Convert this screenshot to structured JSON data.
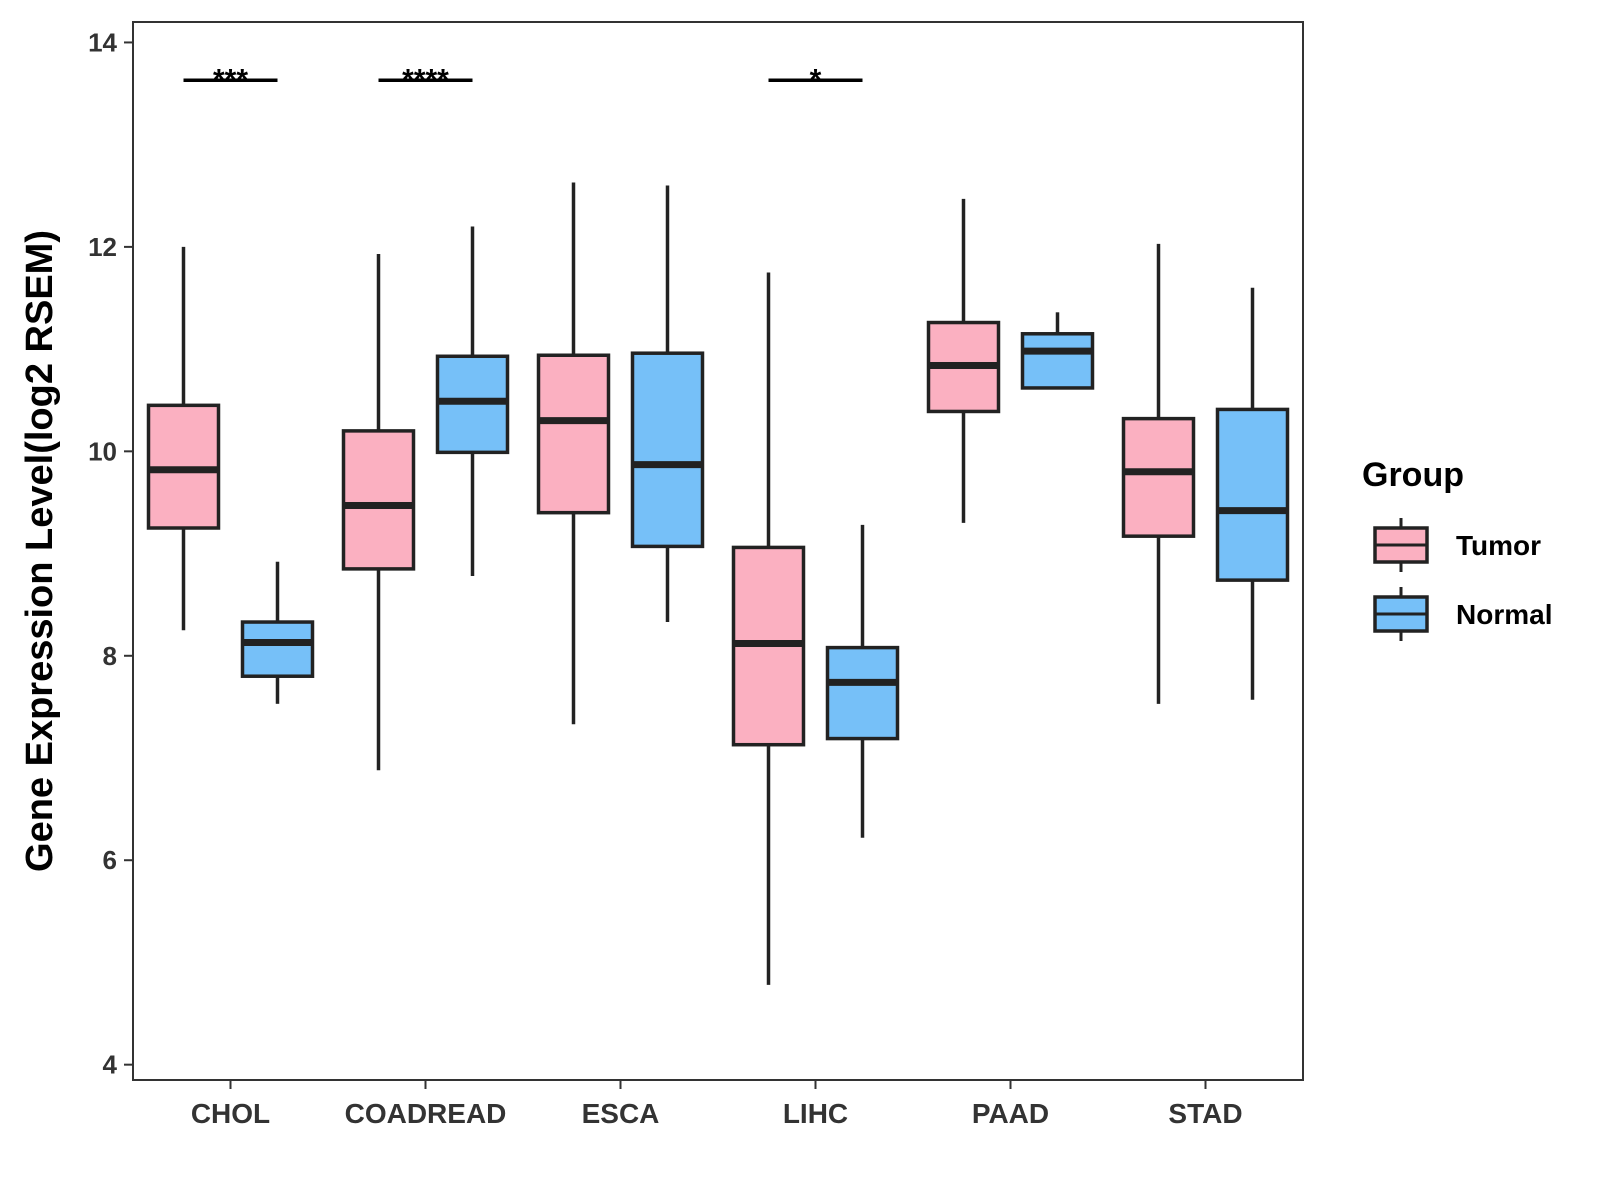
{
  "chart_data": {
    "type": "boxplot",
    "title": "",
    "xlabel": "",
    "ylabel": "Gene Expression Level(log2 RSEM)",
    "ylim": [
      3.85,
      14.2
    ],
    "yticks": [
      4,
      6,
      8,
      10,
      12,
      14
    ],
    "grid": false,
    "legend": {
      "title": "Group",
      "position": "right",
      "entries": [
        "Tumor",
        "Normal"
      ]
    },
    "colors": {
      "Tumor": "#fbb0c1",
      "Normal": "#76c0f8",
      "outline": "#222222"
    },
    "categories": [
      "CHOL",
      "COADREAD",
      "ESCA",
      "LIHC",
      "PAAD",
      "STAD"
    ],
    "series": [
      {
        "name": "Tumor",
        "boxes": [
          {
            "category": "CHOL",
            "min": 8.25,
            "q1": 9.25,
            "median": 9.82,
            "q3": 10.45,
            "max": 12.0
          },
          {
            "category": "COADREAD",
            "min": 6.88,
            "q1": 8.85,
            "median": 9.47,
            "q3": 10.2,
            "max": 11.93
          },
          {
            "category": "ESCA",
            "min": 7.33,
            "q1": 9.4,
            "median": 10.3,
            "q3": 10.94,
            "max": 12.63
          },
          {
            "category": "LIHC",
            "min": 4.78,
            "q1": 7.13,
            "median": 8.12,
            "q3": 9.06,
            "max": 11.75
          },
          {
            "category": "PAAD",
            "min": 9.3,
            "q1": 10.39,
            "median": 10.84,
            "q3": 11.26,
            "max": 12.47
          },
          {
            "category": "STAD",
            "min": 7.53,
            "q1": 9.17,
            "median": 9.8,
            "q3": 10.32,
            "max": 12.03
          }
        ]
      },
      {
        "name": "Normal",
        "boxes": [
          {
            "category": "CHOL",
            "min": 7.53,
            "q1": 7.8,
            "median": 8.13,
            "q3": 8.33,
            "max": 8.92
          },
          {
            "category": "COADREAD",
            "min": 8.78,
            "q1": 9.99,
            "median": 10.49,
            "q3": 10.93,
            "max": 12.2
          },
          {
            "category": "ESCA",
            "min": 8.33,
            "q1": 9.07,
            "median": 9.87,
            "q3": 10.96,
            "max": 12.6
          },
          {
            "category": "LIHC",
            "min": 6.22,
            "q1": 7.19,
            "median": 7.74,
            "q3": 8.08,
            "max": 9.28
          },
          {
            "category": "PAAD",
            "min": 10.62,
            "q1": 10.62,
            "median": 10.98,
            "q3": 11.15,
            "max": 11.36
          },
          {
            "category": "STAD",
            "min": 7.57,
            "q1": 8.74,
            "median": 9.42,
            "q3": 10.41,
            "max": 11.6
          }
        ]
      }
    ],
    "annotations": [
      {
        "category": "CHOL",
        "label": "***",
        "y": 13.63
      },
      {
        "category": "COADREAD",
        "label": "****",
        "y": 13.63
      },
      {
        "category": "LIHC",
        "label": "*",
        "y": 13.63
      }
    ]
  }
}
